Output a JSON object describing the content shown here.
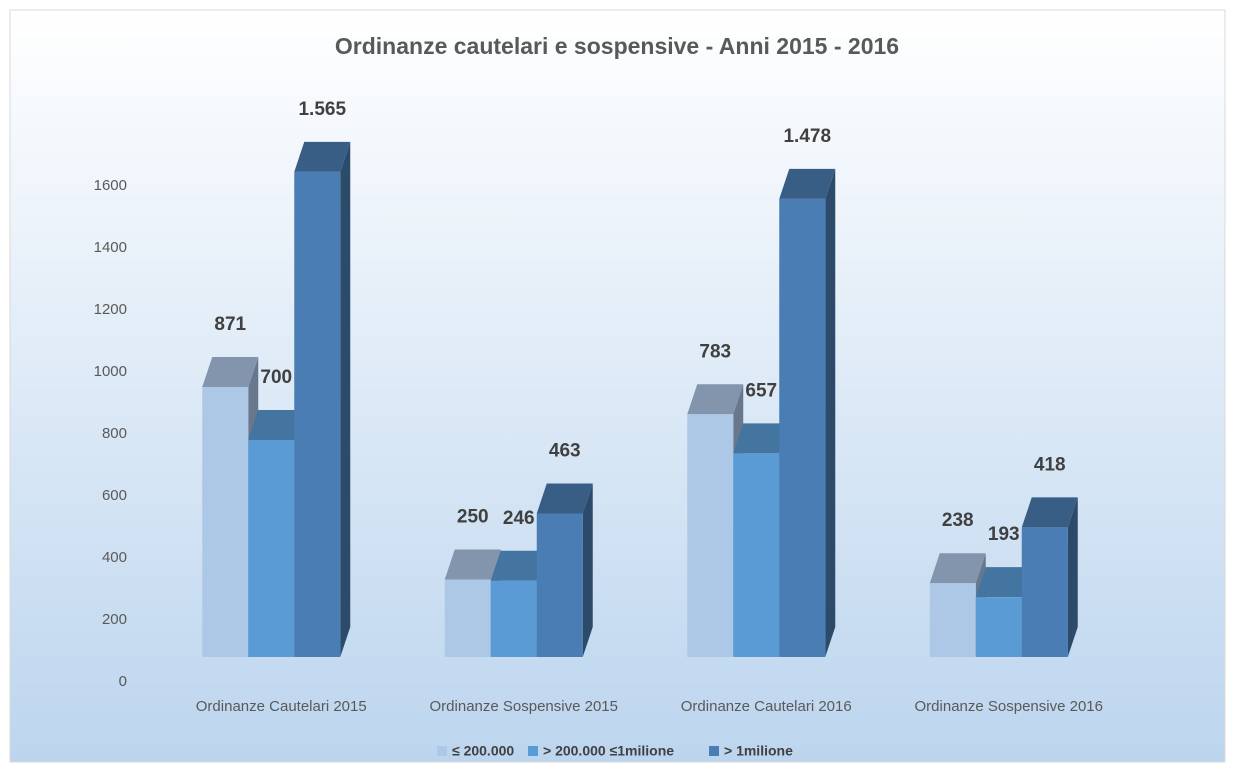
{
  "chart_data": {
    "type": "bar3d",
    "title": "Ordinanze cautelari e sospensive - Anni 2015 - 2016",
    "categories": [
      "Ordinanze Cautelari 2015",
      "Ordinanze Sospensive 2015",
      "Ordinanze Cautelari 2016",
      "Ordinanze Sospensive 2016"
    ],
    "series": [
      {
        "name": "≤ 200.000",
        "color": "#adc7e7",
        "values": [
          871,
          250,
          783,
          238
        ]
      },
      {
        "name": "> 200.000 ≤1milione",
        "color": "#5b9bd5",
        "values": [
          700,
          246,
          657,
          193
        ]
      },
      {
        "name": "> 1milione",
        "color": "#4a7db3",
        "values": [
          1565,
          463,
          1478,
          418
        ],
        "value_labels": [
          "1.565",
          "463",
          "1.478",
          "418"
        ]
      }
    ],
    "ylim": [
      0,
      1600
    ],
    "yticks": [
      0,
      200,
      400,
      600,
      800,
      1000,
      1200,
      1400,
      1600
    ],
    "legend": "bottom"
  }
}
